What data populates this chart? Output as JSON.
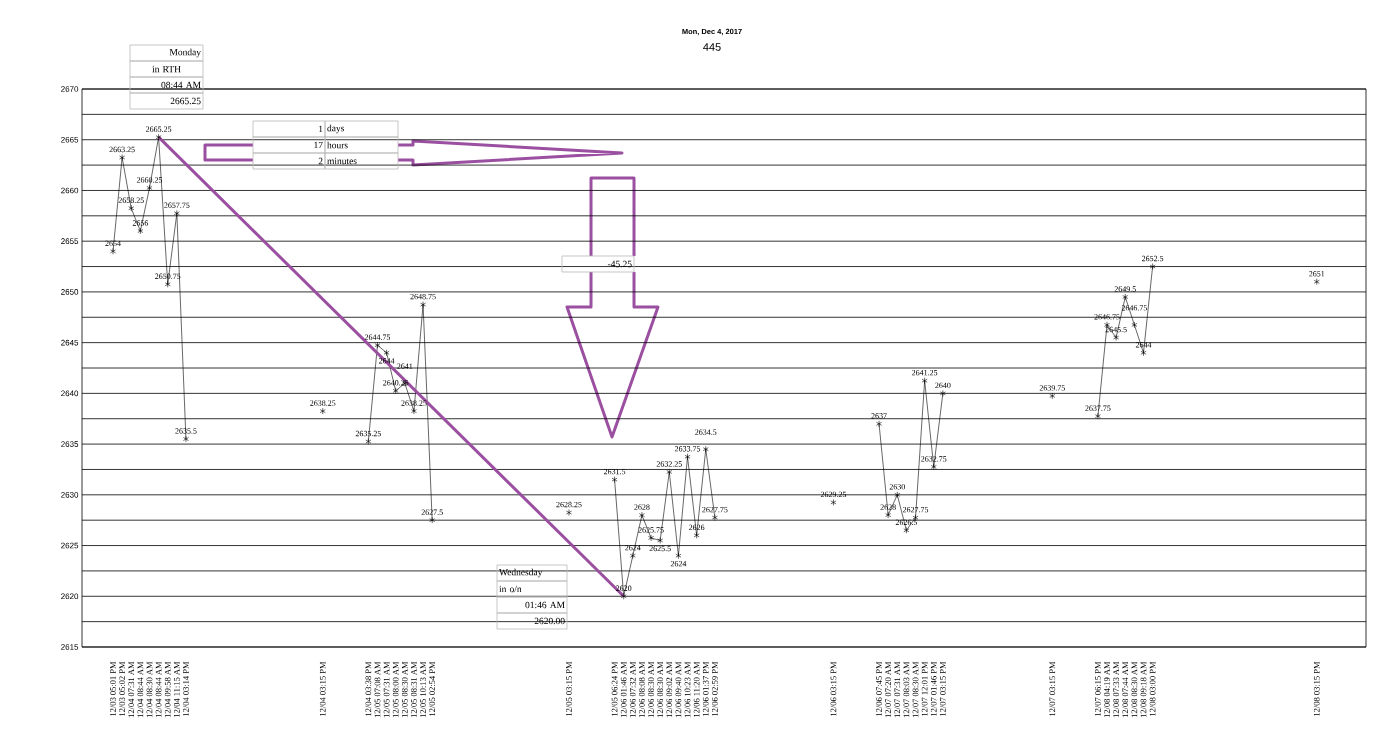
{
  "chart_data": {
    "type": "line",
    "title": "Mon, Dec 4, 2017",
    "subtitle": "445",
    "categories": [
      "12/03 05:01 PM",
      "12/03 05:02 PM",
      "12/04 07:31 AM",
      "12/04 08:44 AM",
      "12/04 08:30 AM",
      "12/04 08:44 AM",
      "12/04 09:58 AM",
      "12/04 11:15 AM",
      "12/04 03:14 PM",
      null,
      null,
      null,
      null,
      null,
      null,
      null,
      null,
      null,
      null,
      null,
      null,
      null,
      null,
      "12/04 03:15 PM",
      null,
      null,
      null,
      null,
      "12/04 03:38 PM",
      "12/05 07:08 AM",
      "12/05 07:31 AM",
      "12/05 08:00 AM",
      "12/05 08:30 AM",
      "12/05 08:31 AM",
      "12/05 10:13 AM",
      "12/05 02:54 PM",
      null,
      null,
      null,
      null,
      null,
      null,
      null,
      null,
      null,
      null,
      null,
      null,
      null,
      null,
      "12/05 03:15 PM",
      null,
      null,
      null,
      null,
      "12/05 06:24 PM",
      "12/06 01:46 AM",
      "12/06 07:32 AM",
      "12/06 08:08 AM",
      "12/06 08:30 AM",
      "12/06 08:30 AM",
      "12/06 09:02 AM",
      "12/06 09:40 AM",
      "12/06 10:23 AM",
      "12/06 11:20 AM",
      "12/06 01:37 PM",
      "12/06 02:59 PM",
      null,
      null,
      null,
      null,
      null,
      null,
      null,
      null,
      null,
      null,
      null,
      null,
      "12/06 03:15 PM",
      null,
      null,
      null,
      null,
      "12/06 07:45 PM",
      "12/07 07:20 AM",
      "12/07 07:31 AM",
      "12/07 08:03 AM",
      "12/07 08:30 AM",
      "12/07 12:01 PM",
      "12/07 01:46 PM",
      "12/07 03:15 PM",
      null,
      null,
      null,
      null,
      null,
      null,
      null,
      null,
      null,
      null,
      null,
      "12/07 03:15 PM",
      null,
      null,
      null,
      null,
      "12/07 06:15 PM",
      "12/08 04:19 AM",
      "12/08 07:33 AM",
      "12/08 07:44 AM",
      "12/08 08:30 AM",
      "12/08 09:18 AM",
      "12/08 03:00 PM",
      null,
      null,
      null,
      null,
      null,
      null,
      null,
      null,
      null,
      null,
      null,
      null,
      null,
      null,
      null,
      null,
      null,
      "12/08 03:15 PM"
    ],
    "values": [
      2654,
      2663.25,
      2658.25,
      2656,
      2660.25,
      2665.25,
      2650.75,
      2657.75,
      2635.5,
      null,
      null,
      null,
      null,
      null,
      null,
      null,
      null,
      null,
      null,
      null,
      null,
      null,
      null,
      2638.25,
      null,
      null,
      null,
      null,
      2635.25,
      2644.75,
      2644,
      2640.25,
      2641,
      2638.25,
      2648.75,
      2627.5,
      null,
      null,
      null,
      null,
      null,
      null,
      null,
      null,
      null,
      null,
      null,
      null,
      null,
      null,
      2628.25,
      null,
      null,
      null,
      null,
      2631.5,
      2620,
      2624,
      2628,
      2625.75,
      2625.5,
      2632.25,
      2624,
      2633.75,
      2626,
      2634.5,
      2627.75,
      null,
      null,
      null,
      null,
      null,
      null,
      null,
      null,
      null,
      null,
      null,
      null,
      2629.25,
      null,
      null,
      null,
      null,
      2637,
      2628,
      2630,
      2626.5,
      2627.75,
      2641.25,
      2632.75,
      2640,
      null,
      null,
      null,
      null,
      null,
      null,
      null,
      null,
      null,
      null,
      null,
      2639.75,
      null,
      null,
      null,
      null,
      2637.75,
      2646.75,
      2645.5,
      2649.5,
      2646.75,
      2644,
      2652.5,
      null,
      null,
      null,
      null,
      null,
      null,
      null,
      null,
      null,
      null,
      null,
      null,
      null,
      null,
      null,
      null,
      null,
      2651
    ],
    "color": "#000000",
    "marker": "cross",
    "line_style": "solid",
    "data_labels": true,
    "grid": "y",
    "ylim": [
      2615,
      2670
    ],
    "yticks": [
      2615,
      {
        "value": 2617.5,
        "label": null
      },
      2620,
      {
        "value": 2622.5,
        "label": null
      },
      2625,
      {
        "value": 2627.5,
        "label": null
      },
      2630,
      {
        "value": 2632.5,
        "label": null
      },
      2635,
      {
        "value": 2637.5,
        "label": null
      },
      2640,
      {
        "value": 2642.5,
        "label": null
      },
      2645,
      {
        "value": 2647.5,
        "label": null
      },
      2650,
      {
        "value": 2652.5,
        "label": null
      },
      2655,
      {
        "value": 2657.5,
        "label": null
      },
      2660,
      {
        "value": 2662.5,
        "label": null
      },
      2665,
      {
        "value": 2667.5,
        "label": null
      },
      2670
    ],
    "annotations": [
      "Monday",
      "in RTH",
      "08:44 AM",
      "2665.25",
      "1",
      "days",
      "17",
      "hours",
      "2",
      "minutes",
      "-45.25",
      "Wednesday",
      "in o/n",
      "01:46 AM",
      "2620.00"
    ]
  }
}
